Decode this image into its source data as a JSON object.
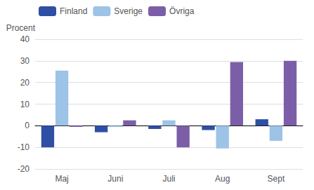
{
  "chart_data": {
    "type": "bar",
    "categories": [
      "Maj",
      "Juni",
      "Juli",
      "Aug",
      "Sept"
    ],
    "series": [
      {
        "name": "Finland",
        "color": "#2E4FA3",
        "values": [
          -10,
          -3,
          -1.5,
          -2,
          3
        ]
      },
      {
        "name": "Sverige",
        "color": "#9DC3E6",
        "values": [
          25.5,
          -0.5,
          2.5,
          -10.5,
          -7
        ]
      },
      {
        "name": "Övriga",
        "color": "#7B5EA7",
        "values": [
          -0.5,
          2.5,
          -10,
          29.5,
          30
        ]
      }
    ],
    "ylabel": "Procent",
    "ylim": [
      -20,
      40
    ],
    "yticks": [
      -20,
      -10,
      0,
      10,
      20,
      30,
      40
    ],
    "grid": true,
    "legend": "upper left"
  }
}
